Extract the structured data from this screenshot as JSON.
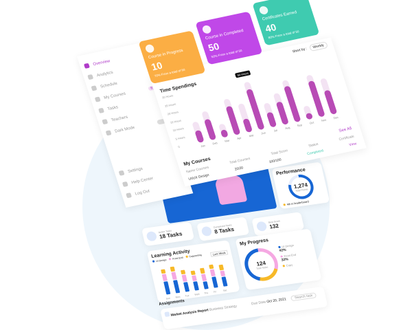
{
  "colors": {
    "accent": "#b03cc9",
    "orange": "#fbae44",
    "purple": "#c048e8",
    "teal": "#3fcbb0",
    "blue": "#1766d4",
    "pink": "#f5a8e2",
    "yellow": "#f7b928"
  },
  "sidebar": {
    "items": [
      {
        "label": "Overview",
        "icon": "grid-icon",
        "active": true
      },
      {
        "label": "Analytics",
        "icon": "chart-icon"
      },
      {
        "label": "Schedule",
        "icon": "calendar-icon"
      },
      {
        "label": "My Courses",
        "icon": "book-icon",
        "badge": "8"
      },
      {
        "label": "Tasks",
        "icon": "task-icon"
      },
      {
        "label": "Teachers",
        "icon": "user-icon"
      },
      {
        "label": "Dark Mode",
        "icon": "moon-icon",
        "toggle": false
      }
    ],
    "bottom": [
      {
        "label": "Settings",
        "icon": "gear-icon"
      },
      {
        "label": "Help Center",
        "icon": "help-icon"
      },
      {
        "label": "Log Out",
        "icon": "logout-icon"
      }
    ],
    "extra_settings": "Settings"
  },
  "cards": [
    {
      "title": "Course in Progress",
      "value": "10",
      "sub": "70% From a total of 60"
    },
    {
      "title": "Course in Completed",
      "value": "50",
      "sub": "50% From a total of 60"
    },
    {
      "title": "Certificates Earned",
      "value": "40",
      "sub": "80% From a total of 60"
    }
  ],
  "sort": {
    "label": "Short by :",
    "value": "Weekly"
  },
  "time_spendings": {
    "title": "Time Spendings",
    "tooltip": "64 Hours",
    "yticks": [
      "30 Hours",
      "25 Hours",
      "20 Hours",
      "15 Hours",
      "10 Hours",
      "5 Hours",
      "0"
    ],
    "ymax": 30,
    "months": [
      "Jan",
      "Feb",
      "Mar",
      "Apr",
      "Mai",
      "Jun",
      "Jul",
      "Aug",
      "Sep",
      "Oct",
      "Nov",
      "Dec"
    ],
    "values": [
      8,
      14,
      5,
      19,
      9,
      27,
      10,
      15,
      24,
      4,
      24,
      16
    ],
    "background": [
      14,
      19,
      9,
      24,
      19,
      32,
      16,
      21,
      28,
      9,
      28,
      24
    ]
  },
  "courses": {
    "title": "My Courses",
    "see_all": "See All",
    "headers": [
      "Name Courses",
      "Total Courses",
      "Total Score",
      "Status",
      "Certificate"
    ],
    "rows": [
      {
        "name": "UI/UX Design",
        "total": "20/20",
        "score": "100/100",
        "status": "Completed",
        "certificate": "View"
      }
    ]
  },
  "performance": {
    "title": "Performance",
    "value": "1,274",
    "sub": "Total Points",
    "rank": "4th in leaderboard"
  },
  "tasks": [
    {
      "label": "Active Tasks",
      "value": "18 Tasks"
    },
    {
      "label": "Completed Tasks",
      "value": "8 Tasks"
    },
    {
      "label": "Best Score",
      "value": "132"
    }
  ],
  "learning": {
    "title": "Learning Activity",
    "legend": [
      "UI Design",
      "Front End",
      "Copywriting"
    ],
    "filter": "Last Week",
    "days": [
      "Sun",
      "Mon",
      "Tue",
      "Wed",
      "Thu",
      "Fri",
      "Sat"
    ],
    "values": [
      [
        12,
        6,
        4
      ],
      [
        12,
        7,
        4
      ],
      [
        9,
        6,
        4
      ],
      [
        8,
        5,
        4
      ],
      [
        7,
        6,
        5
      ],
      [
        10,
        6,
        4
      ],
      [
        9,
        5,
        5
      ]
    ]
  },
  "progress": {
    "title": "My Progress",
    "total": "124",
    "total_label": "Total Tasks",
    "items": [
      {
        "label": "UI Design",
        "pct": "42%"
      },
      {
        "label": "Front End",
        "pct": "32%"
      },
      {
        "label": "Copy",
        "pct": ""
      }
    ]
  },
  "assignments": {
    "title": "Assignments",
    "search": "Search task",
    "item": {
      "title": "Market Analysis Report",
      "sub": "Business Strategy",
      "due_label": "Due Date",
      "due": "Oct 20, 2021"
    }
  }
}
